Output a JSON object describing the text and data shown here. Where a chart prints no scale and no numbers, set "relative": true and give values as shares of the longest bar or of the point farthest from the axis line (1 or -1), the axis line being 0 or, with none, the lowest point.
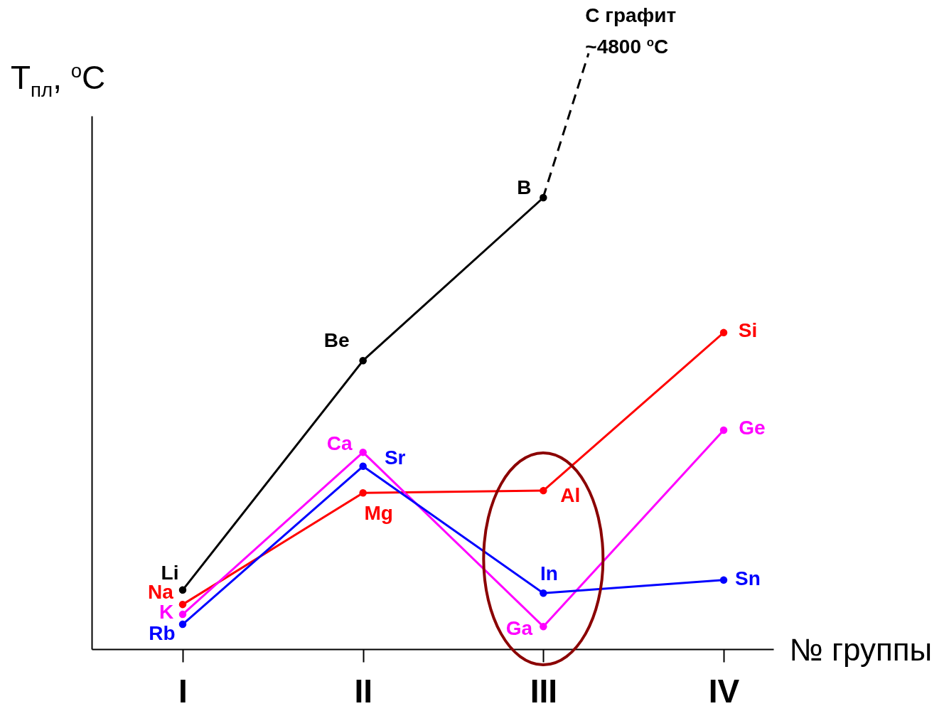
{
  "chart_data": {
    "type": "line",
    "xlabel": "№ группы",
    "ylabel": "T$_{пл}$, $^{o}$C",
    "relative": true,
    "marker": "circle",
    "categories": [
      "I",
      "II",
      "III",
      "IV"
    ],
    "series": [
      {
        "color": "#000000",
        "values": [
          0.131,
          0.639,
          1,
          null
        ]
      },
      {
        "color": "#ff0000",
        "values": [
          0.099,
          0.346,
          0.351,
          0.701
        ]
      },
      {
        "color": "#ff00ff",
        "values": [
          0.077,
          0.436,
          0.05,
          0.485
        ]
      },
      {
        "color": "#0000ff",
        "values": [
          0.055,
          0.405,
          0.124,
          0.153
        ]
      }
    ],
    "annotations": [
      {
        "text": "Li",
        "x": "I",
        "y": 0.131
      },
      {
        "text": "Na",
        "x": "I",
        "y": 0.099
      },
      {
        "text": "K",
        "x": "I",
        "y": 0.077
      },
      {
        "text": "Rb",
        "x": "I",
        "y": 0.055
      },
      {
        "text": "Be",
        "x": "II",
        "y": 0.639
      },
      {
        "text": "Mg",
        "x": "II",
        "y": 0.346
      },
      {
        "text": "Ca",
        "x": "II",
        "y": 0.436
      },
      {
        "text": "Sr",
        "x": "II",
        "y": 0.405
      },
      {
        "text": "B",
        "x": "III",
        "y": 1
      },
      {
        "text": "Al",
        "x": "III",
        "y": 0.351
      },
      {
        "text": "In",
        "x": "III",
        "y": 0.124
      },
      {
        "text": "Ga",
        "x": "III",
        "y": 0.05
      },
      {
        "text": "Si",
        "x": "IV",
        "y": 0.701
      },
      {
        "text": "Ge",
        "x": "IV",
        "y": 0.485
      },
      {
        "text": "Sn",
        "x": "IV",
        "y": 0.153
      },
      "C графит\n~4800 $^{o}$C"
    ]
  }
}
